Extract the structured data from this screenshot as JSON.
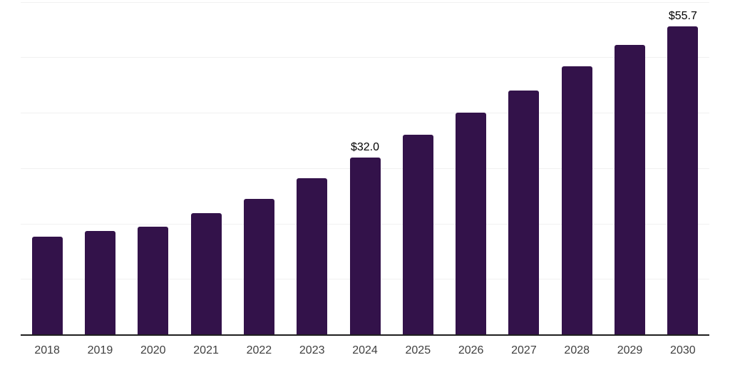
{
  "chart_data": {
    "type": "bar",
    "title": "",
    "xlabel": "",
    "ylabel": "",
    "categories": [
      "2018",
      "2019",
      "2020",
      "2021",
      "2022",
      "2023",
      "2024",
      "2025",
      "2026",
      "2027",
      "2028",
      "2029",
      "2030"
    ],
    "values": [
      17.8,
      18.8,
      19.5,
      22.0,
      24.6,
      28.3,
      32.0,
      36.1,
      40.1,
      44.1,
      48.5,
      52.3,
      55.7
    ],
    "data_labels": [
      "",
      "",
      "",
      "",
      "",
      "",
      "$32.0",
      "",
      "",
      "",
      "",
      "",
      "$55.7"
    ],
    "ylim": [
      0,
      60
    ],
    "grid_step": 10,
    "grid": "horizontal",
    "legend_position": "none",
    "colors": {
      "bar": "#33124A",
      "gridline": "#F1F1F1",
      "axis_line": "#1F1F1F",
      "tick_label": "#404040",
      "data_label": "#000000",
      "background": "#FFFFFF"
    }
  }
}
